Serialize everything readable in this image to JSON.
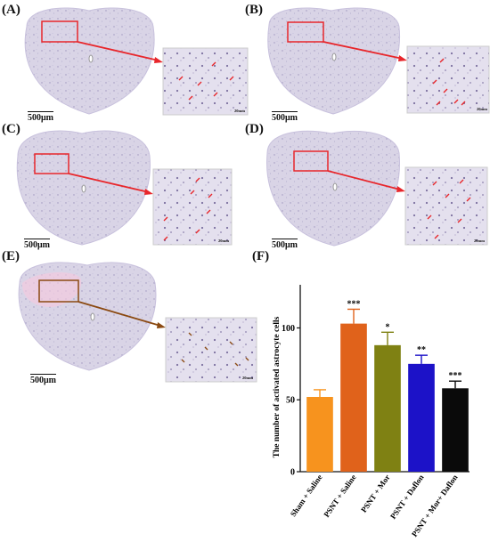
{
  "panels": {
    "a": {
      "label": "(A)",
      "scale": "500μm",
      "inset_scale": "20mm"
    },
    "b": {
      "label": "(B)",
      "scale": "500μm",
      "inset_scale": "20mm"
    },
    "c": {
      "label": "(C)",
      "scale": "500μm",
      "inset_scale": "20mm"
    },
    "d": {
      "label": "(D)",
      "scale": "500μm",
      "inset_scale": "20mm"
    },
    "e": {
      "label": "(E)",
      "scale": "500μm",
      "inset_scale": "20mm"
    },
    "f": {
      "label": "(F)"
    }
  },
  "colors": {
    "tissue": "#d9d4e6",
    "tissue_edge": "#c8c1dd",
    "highlight_box": "#e8262b",
    "highlight_box_e": "#8b4a12",
    "arrow": "#e8262b",
    "stain_e": "#f5c9df"
  },
  "chart_data": {
    "type": "bar",
    "ylabel": "The number of activated astrocyte cells",
    "ylim": [
      0,
      130
    ],
    "yticks": [
      0,
      50,
      100
    ],
    "categories": [
      "Sham + Saline",
      "PSNT + Saline",
      "PSNT + Mor",
      "PSNT + Daflon",
      "PSNT + Mor+ Daflon"
    ],
    "values": [
      52,
      103,
      88,
      75,
      58
    ],
    "errors": [
      5,
      10,
      9,
      6,
      5
    ],
    "significance": [
      "",
      "***",
      "*",
      "**",
      "***"
    ],
    "colors": [
      "#f7931e",
      "#e0621b",
      "#7f8113",
      "#1c12c8",
      "#0a0a0a"
    ]
  }
}
